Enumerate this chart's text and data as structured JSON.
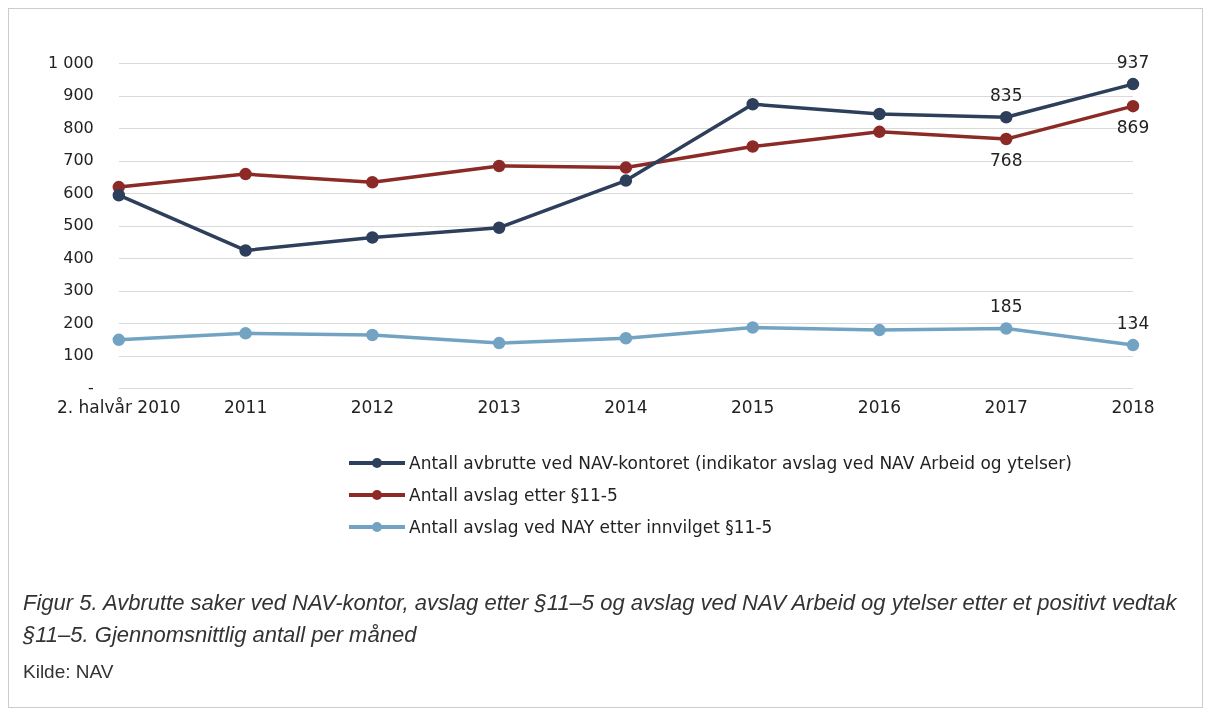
{
  "chart_data": {
    "type": "line",
    "title": "Figur 5. Avbrutte saker ved NAV-kontor, avslag etter §11–5 og avslag ved NAV Arbeid og ytelser etter et positivt vedtak §11–5. Gjennomsnittlig antall per måned",
    "annotations": [
      "Kilde: NAV"
    ],
    "categories": [
      "2. halvår 2010",
      "2011",
      "2012",
      "2013",
      "2014",
      "2015",
      "2016",
      "2017",
      "2018"
    ],
    "series": [
      {
        "name": "Antall avbrutte ved NAV-kontoret (indikator avslag ved NAV Arbeid og ytelser)",
        "color": "#2e3f5c",
        "values": [
          595,
          425,
          465,
          495,
          640,
          875,
          845,
          835,
          937
        ],
        "value_labels": [
          null,
          null,
          null,
          null,
          null,
          null,
          null,
          "835",
          "937"
        ]
      },
      {
        "name": "Antall avslag etter §11-5",
        "color": "#8b2a26",
        "values": [
          620,
          660,
          635,
          685,
          680,
          745,
          790,
          768,
          869
        ],
        "value_labels": [
          null,
          null,
          null,
          null,
          null,
          null,
          null,
          "768",
          "869"
        ]
      },
      {
        "name": "Antall avslag ved NAY etter innvilget §11-5",
        "color": "#72a3c2",
        "values": [
          150,
          170,
          165,
          140,
          155,
          188,
          180,
          185,
          134
        ],
        "value_labels": [
          null,
          null,
          null,
          null,
          null,
          null,
          null,
          "185",
          "134"
        ]
      }
    ],
    "ylim": [
      0,
      1000
    ],
    "yticks": [
      {
        "value": 0,
        "label": "-"
      },
      100,
      200,
      300,
      400,
      500,
      600,
      700,
      800,
      900,
      {
        "value": 1000,
        "label": "1 000"
      }
    ],
    "grid": "y",
    "legend": "bottom",
    "marker": "circle",
    "line_style": "solid"
  }
}
